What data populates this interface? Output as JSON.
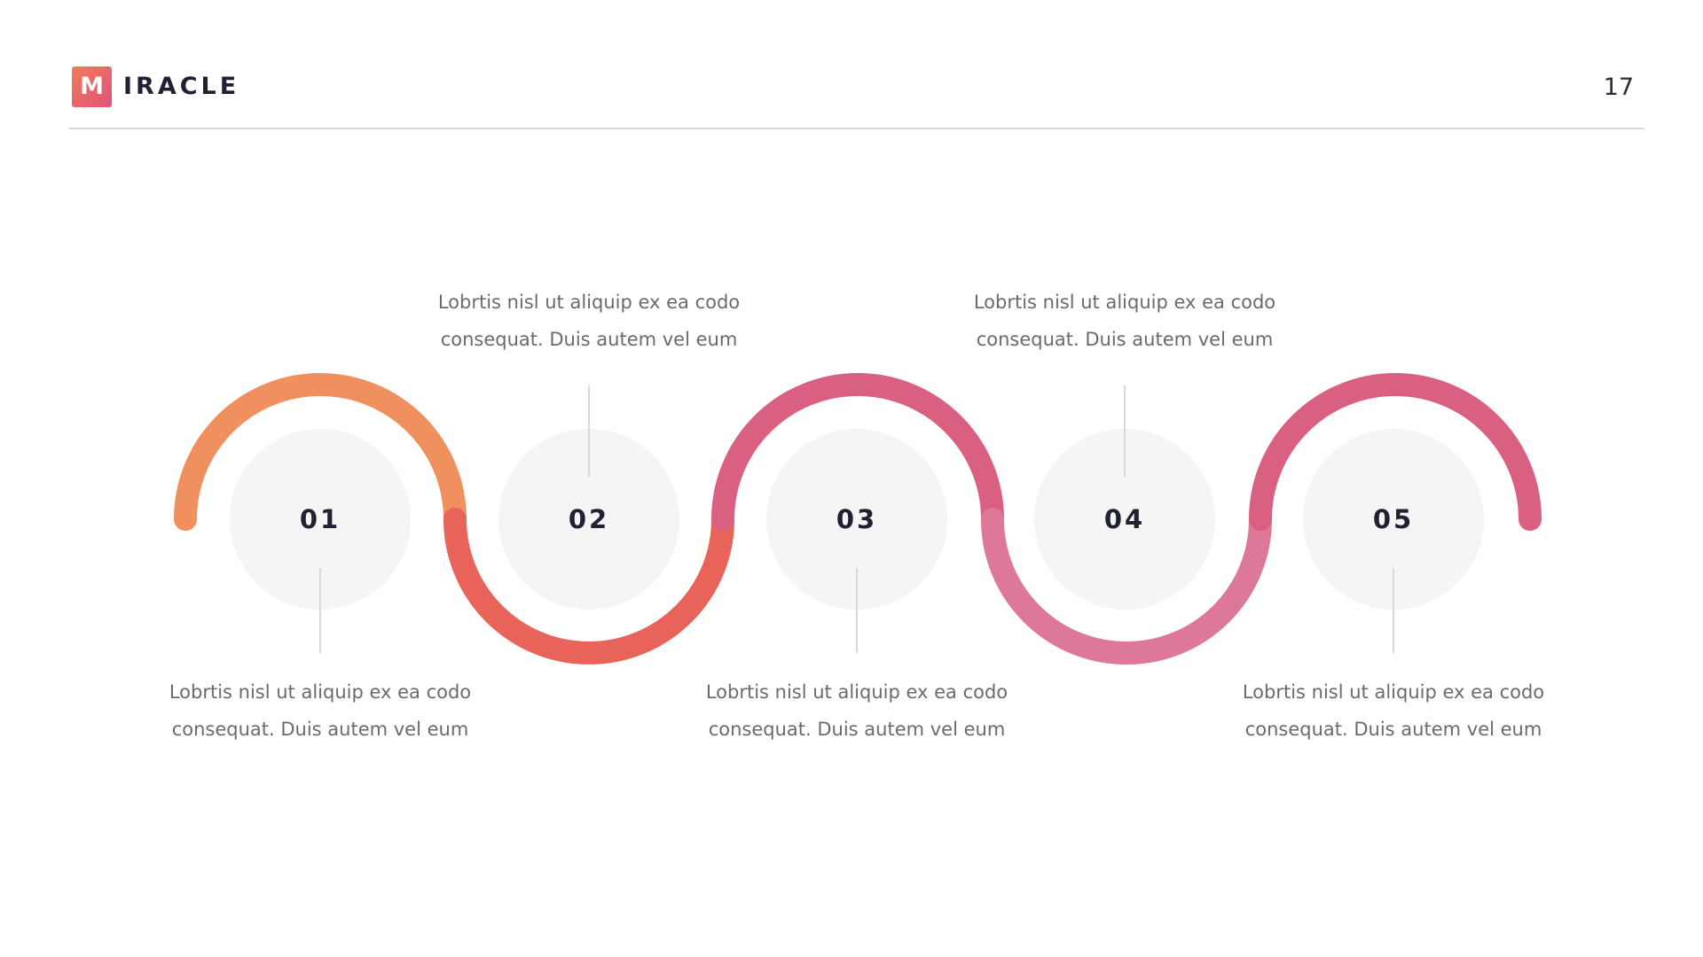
{
  "header": {
    "logo_letter": "M",
    "logo_text": "IRACLE",
    "page_number": "17"
  },
  "colors": {
    "orange": "#f0905f",
    "red": "#e86359",
    "magenta": "#d96080",
    "pink": "#dd7898",
    "circle_fill": "#f5f5f5",
    "connector": "#d9d9d9",
    "text_gray": "#6b6b6b",
    "number_dark": "#202131"
  },
  "steps": [
    {
      "number": "01",
      "text_line1": "Lobrtis nisl ut aliquip ex ea codo",
      "text_line2": "consequat. Duis autem vel eum"
    },
    {
      "number": "02",
      "text_line1": "Lobrtis nisl ut aliquip ex ea codo",
      "text_line2": "consequat. Duis autem vel eum"
    },
    {
      "number": "03",
      "text_line1": "Lobrtis nisl ut aliquip ex ea codo",
      "text_line2": "consequat. Duis autem vel eum"
    },
    {
      "number": "04",
      "text_line1": "Lobrtis nisl ut aliquip ex ea codo",
      "text_line2": "consequat. Duis autem vel eum"
    },
    {
      "number": "05",
      "text_line1": "Lobrtis nisl ut aliquip ex ea codo",
      "text_line2": "consequat. Duis autem vel eum"
    }
  ]
}
